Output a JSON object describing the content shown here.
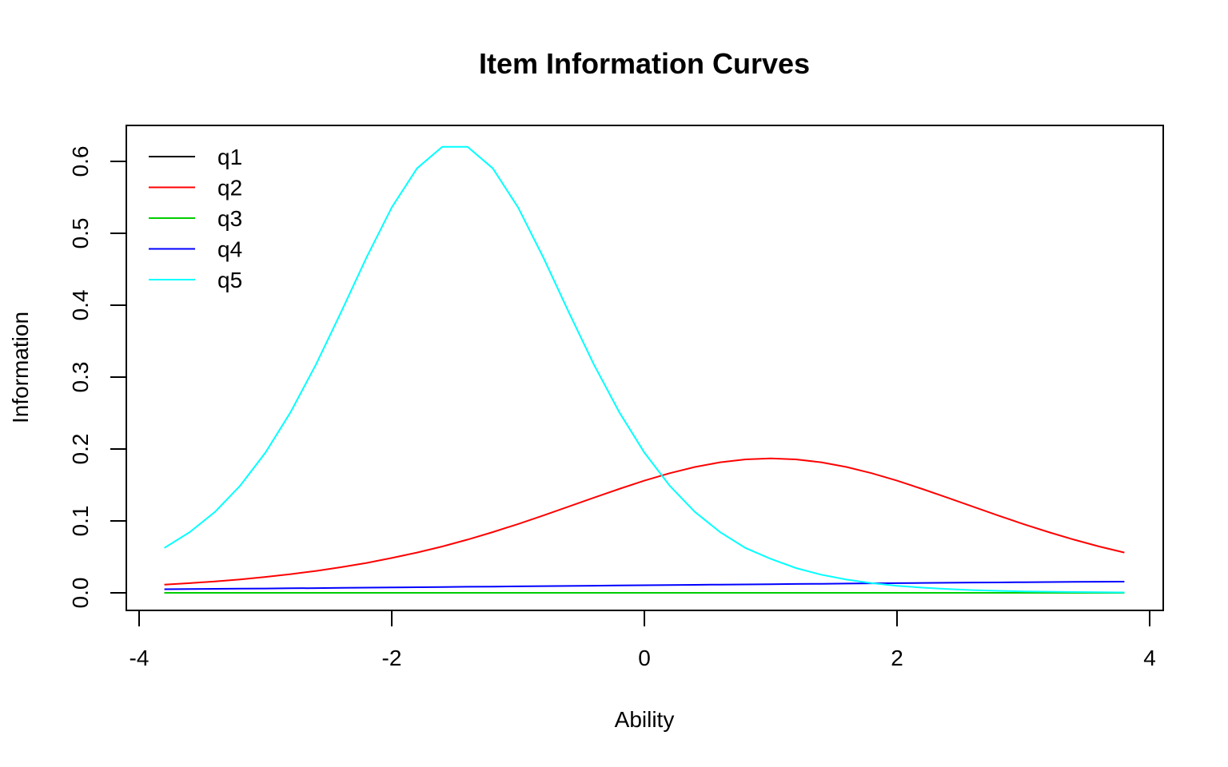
{
  "chart_data": {
    "type": "line",
    "title": "Item Information Curves",
    "xlabel": "Ability",
    "ylabel": "Information",
    "xlim": [
      -4,
      4
    ],
    "ylim": [
      0,
      0.6
    ],
    "x_ticks": [
      "-4",
      "-2",
      "0",
      "2",
      "4"
    ],
    "y_ticks": [
      "0.0",
      "0.1",
      "0.2",
      "0.3",
      "0.4",
      "0.5",
      "0.6"
    ],
    "grid": false,
    "legend_position": "topleft",
    "x": [
      -3.8,
      -3.6,
      -3.4,
      -3.2,
      -3.0,
      -2.8,
      -2.6,
      -2.4,
      -2.2,
      -2.0,
      -1.8,
      -1.6,
      -1.4,
      -1.2,
      -1.0,
      -0.8,
      -0.6,
      -0.4,
      -0.2,
      0.0,
      0.2,
      0.4,
      0.6,
      0.8,
      1.0,
      1.2,
      1.4,
      1.6,
      1.8,
      2.0,
      2.2,
      2.4,
      2.6,
      2.8,
      3.0,
      3.2,
      3.4,
      3.6,
      3.8
    ],
    "series": [
      {
        "name": "q1",
        "color": "#000000",
        "values": [
          0,
          0,
          0,
          0,
          0,
          0,
          0,
          0,
          0,
          0,
          0,
          0,
          0,
          0,
          0,
          0,
          0,
          0,
          0,
          0,
          0,
          0,
          0,
          0,
          0,
          0,
          0,
          0,
          0,
          0,
          0,
          0,
          0,
          0,
          0,
          0,
          0,
          0,
          0
        ]
      },
      {
        "name": "q2",
        "color": "#ff0000",
        "values": [
          0.0114,
          0.0135,
          0.0159,
          0.0187,
          0.0221,
          0.026,
          0.0304,
          0.0357,
          0.0415,
          0.0484,
          0.056,
          0.0645,
          0.074,
          0.0845,
          0.0957,
          0.1076,
          0.1199,
          0.1323,
          0.1445,
          0.156,
          0.1663,
          0.175,
          0.1815,
          0.1856,
          0.187,
          0.1856,
          0.1815,
          0.175,
          0.1663,
          0.156,
          0.1445,
          0.1323,
          0.1199,
          0.1076,
          0.0957,
          0.0845,
          0.074,
          0.0645,
          0.056
        ]
      },
      {
        "name": "q3",
        "color": "#00cd00",
        "values": [
          0,
          0,
          0,
          0,
          0,
          0,
          0,
          0,
          0,
          0,
          0,
          0,
          0,
          0,
          0,
          0,
          0,
          0,
          0,
          0,
          0,
          0,
          0,
          0,
          0,
          0,
          0,
          0,
          0,
          0,
          0,
          0,
          0,
          0,
          0,
          0,
          0,
          0,
          0
        ]
      },
      {
        "name": "q4",
        "color": "#0000ff",
        "values": [
          0.005,
          0.0053,
          0.0055,
          0.0058,
          0.006,
          0.0063,
          0.0066,
          0.0069,
          0.0072,
          0.0075,
          0.0078,
          0.0081,
          0.0084,
          0.0087,
          0.009,
          0.0093,
          0.0096,
          0.0099,
          0.0102,
          0.0105,
          0.0108,
          0.0111,
          0.0114,
          0.0117,
          0.012,
          0.0123,
          0.0126,
          0.0129,
          0.0132,
          0.0135,
          0.0138,
          0.014,
          0.0143,
          0.0145,
          0.0148,
          0.015,
          0.0152,
          0.0154,
          0.0155
        ]
      },
      {
        "name": "q5",
        "color": "#00ffff",
        "values": [
          0.0625,
          0.0843,
          0.1125,
          0.149,
          0.195,
          0.2516,
          0.3176,
          0.3908,
          0.4663,
          0.536,
          0.5903,
          0.6202,
          0.6202,
          0.5903,
          0.536,
          0.4663,
          0.3908,
          0.3176,
          0.2516,
          0.195,
          0.149,
          0.1125,
          0.0843,
          0.0625,
          0.0472,
          0.0345,
          0.0252,
          0.0185,
          0.0135,
          0.0098,
          0.0072,
          0.0052,
          0.0038,
          0.0028,
          0.002,
          0.0015,
          0.0011,
          0.0008,
          0.0006
        ]
      }
    ]
  }
}
